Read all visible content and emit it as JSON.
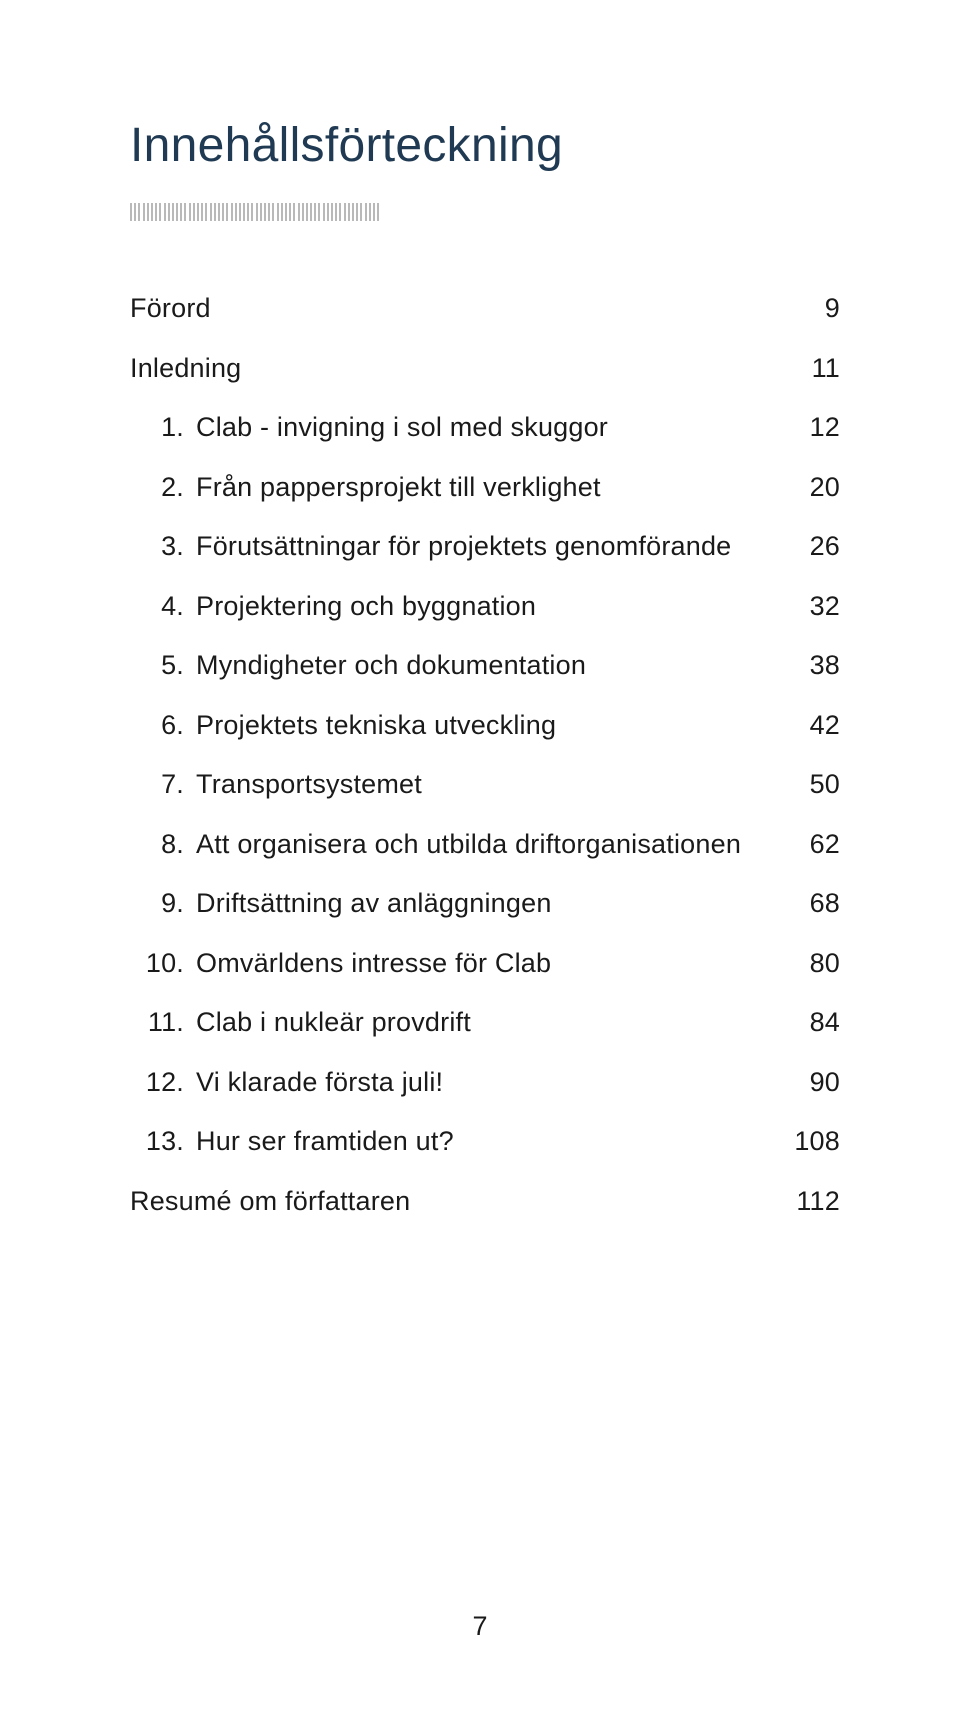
{
  "title": {
    "text": "Innehållsförteckning",
    "color": "#1f3a52"
  },
  "tickbar": {
    "count": 60,
    "color": "#b9b9b9"
  },
  "toc": {
    "entries": [
      {
        "num": "",
        "label": "Förord",
        "page": "9"
      },
      {
        "num": "",
        "label": "Inledning",
        "page": "11"
      },
      {
        "num": "1.",
        "label": "Clab - invigning i sol med skuggor",
        "page": "12"
      },
      {
        "num": "2.",
        "label": "Från pappersprojekt till verklighet",
        "page": "20"
      },
      {
        "num": "3.",
        "label": "Förutsättningar för projektets genomförande",
        "page": "26"
      },
      {
        "num": "4.",
        "label": "Projektering och byggnation",
        "page": "32"
      },
      {
        "num": "5.",
        "label": "Myndigheter och dokumentation",
        "page": "38"
      },
      {
        "num": "6.",
        "label": "Projektets tekniska utveckling",
        "page": "42"
      },
      {
        "num": "7.",
        "label": "Transportsystemet",
        "page": "50"
      },
      {
        "num": "8.",
        "label": "Att organisera och utbilda driftorganisationen",
        "page": "62"
      },
      {
        "num": "9.",
        "label": "Driftsättning av anläggningen",
        "page": "68"
      },
      {
        "num": "10.",
        "label": "Omvärldens intresse för Clab",
        "page": "80"
      },
      {
        "num": "11.",
        "label": "Clab i nukleär provdrift",
        "page": "84"
      },
      {
        "num": "12.",
        "label": "Vi klarade första juli!",
        "page": "90"
      },
      {
        "num": "13.",
        "label": "Hur ser framtiden ut?",
        "page": "108"
      },
      {
        "num": "",
        "label": "Resumé om författaren",
        "page": "112"
      }
    ]
  },
  "page_number": "7"
}
